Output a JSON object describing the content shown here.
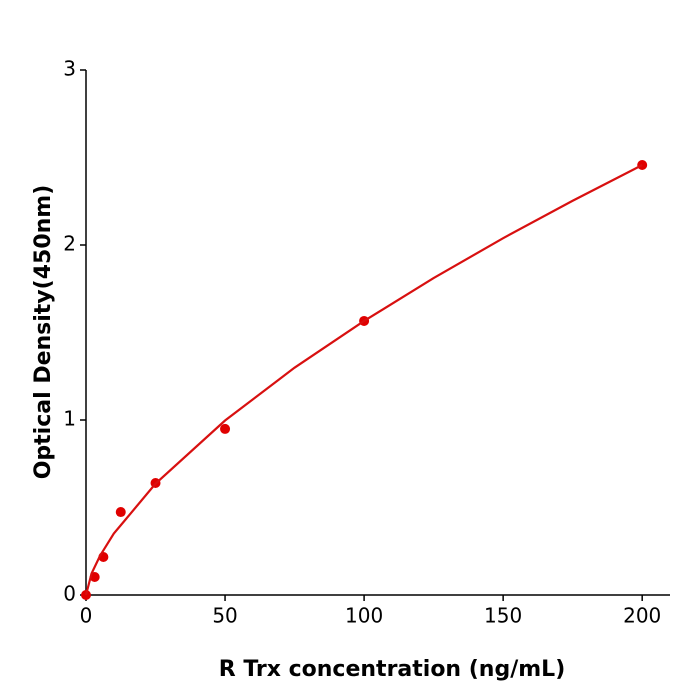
{
  "chart_data": {
    "type": "scatter",
    "x_label": "R  Trx concentration (ng/mL)",
    "y_label": "Optical Density(450nm)",
    "xlim": [
      0,
      210
    ],
    "ylim": [
      0,
      3
    ],
    "xticks": [
      0,
      50,
      100,
      150,
      200
    ],
    "yticks": [
      0,
      1,
      2,
      3
    ],
    "series": [
      {
        "type": "scatter",
        "color": "#e00000",
        "x": [
          0,
          3.125,
          6.25,
          12.5,
          25,
          50,
          100,
          200
        ],
        "values": [
          0,
          0.103,
          0.217,
          0.474,
          0.64,
          0.949,
          1.566,
          2.457
        ]
      },
      {
        "type": "line",
        "color": "#d81010",
        "x": [
          0,
          2,
          5,
          10,
          25,
          50,
          75,
          100,
          125,
          150,
          175,
          200
        ],
        "values": [
          0,
          0.123,
          0.223,
          0.351,
          0.636,
          0.997,
          1.299,
          1.566,
          1.811,
          2.039,
          2.253,
          2.457
        ]
      }
    ]
  }
}
